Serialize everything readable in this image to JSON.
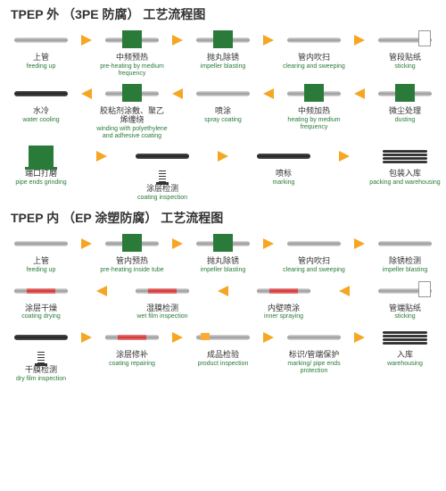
{
  "sections": [
    {
      "title": "TPEP 外 （3PE 防腐） 工艺流程图",
      "rows": [
        {
          "dir": "r",
          "steps": [
            {
              "cn": "上管",
              "en": "feeding up",
              "style": "pipe"
            },
            {
              "cn": "中频预热",
              "en": "pre-heating by medium frequency",
              "style": "box"
            },
            {
              "cn": "抛丸除锈",
              "en": "impeller blasting",
              "style": "box"
            },
            {
              "cn": "管内吹扫",
              "en": "clearing and sweeping",
              "style": "pipe"
            },
            {
              "cn": "管段贴纸",
              "en": "sticking",
              "style": "paper"
            }
          ]
        },
        {
          "dir": "l",
          "steps": [
            {
              "cn": "水冷",
              "en": "water cooling",
              "style": "dark"
            },
            {
              "cn": "胶粘剂涂敷、聚乙烯缠绕",
              "en": "winding with polyethylene and adhesive coating",
              "style": "box"
            },
            {
              "cn": "喷涂",
              "en": "spray coating",
              "style": "pipe"
            },
            {
              "cn": "中频加热",
              "en": "heating by medium frequency",
              "style": "box"
            },
            {
              "cn": "微尘处理",
              "en": "dusting",
              "style": "box"
            }
          ]
        },
        {
          "dir": "r",
          "steps": [
            {
              "cn": "端口打磨",
              "en": "pipe ends grinding",
              "style": "grinder"
            },
            {
              "cn": "涂层检测",
              "en": "coating inspection",
              "style": "spring"
            },
            {
              "cn": "喷标",
              "en": "marking",
              "style": "dark"
            },
            {
              "cn": "包装入库",
              "en": "packing and warehousing",
              "style": "stack"
            }
          ]
        }
      ]
    },
    {
      "title": "TPEP 内 （EP 涂塑防腐） 工艺流程图",
      "rows": [
        {
          "dir": "r",
          "steps": [
            {
              "cn": "上管",
              "en": "feeding up",
              "style": "pipe"
            },
            {
              "cn": "管内预热",
              "en": "pre-heating inside tube",
              "style": "box"
            },
            {
              "cn": "抛丸除锈",
              "en": "impeller blasting",
              "style": "box"
            },
            {
              "cn": "管内吹扫",
              "en": "clearing and sweeping",
              "style": "pipe"
            },
            {
              "cn": "除锈检测",
              "en": "impeller blasting",
              "style": "pipe"
            }
          ]
        },
        {
          "dir": "l",
          "steps": [
            {
              "cn": "涂层干燥",
              "en": "coating drying",
              "style": "red"
            },
            {
              "cn": "湿膜检测",
              "en": "wet film inspection",
              "style": "red"
            },
            {
              "cn": "内壁喷涂",
              "en": "inner spraying",
              "style": "red"
            },
            {
              "cn": "管端贴纸",
              "en": "sticking",
              "style": "paper"
            }
          ]
        },
        {
          "dir": "r",
          "steps": [
            {
              "cn": "干膜检测",
              "en": "dry film inspection",
              "style": "spring"
            },
            {
              "cn": "涂层修补",
              "en": "coating repairing",
              "style": "red"
            },
            {
              "cn": "成品检验",
              "en": "product inspection",
              "style": "tag"
            },
            {
              "cn": "标识/管端保护",
              "en": "marking/ pipe ends protection",
              "style": "pipe"
            },
            {
              "cn": "入库",
              "en": "warehousing",
              "style": "stack"
            }
          ]
        }
      ]
    }
  ],
  "colors": {
    "green": "#2a7a3a",
    "orange": "#f5a623",
    "pipe": "#999",
    "dark": "#333",
    "red": "#c33"
  }
}
